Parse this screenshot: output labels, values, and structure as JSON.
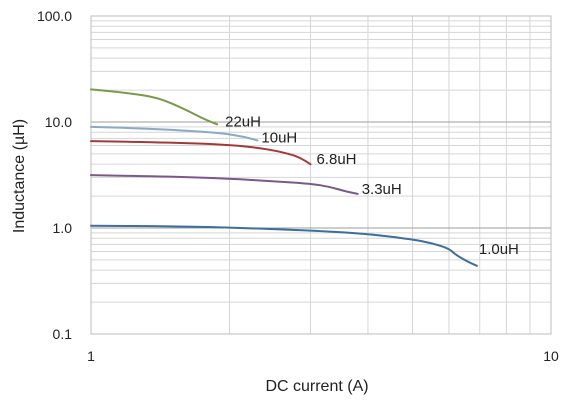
{
  "chart_data": {
    "type": "line",
    "title": "",
    "xlabel": "DC current (A)",
    "ylabel": "Inductance (µH)",
    "xscale": "log",
    "yscale": "log",
    "xlim": [
      1,
      10
    ],
    "ylim": [
      0.1,
      100
    ],
    "grid": true,
    "legend": "none",
    "x_tick_labels": [
      {
        "value": 1,
        "label": "1"
      },
      {
        "value": 10,
        "label": "10"
      }
    ],
    "y_tick_labels": [
      {
        "value": 0.1,
        "label": "0.1"
      },
      {
        "value": 1,
        "label": "1.0"
      },
      {
        "value": 10,
        "label": "10.0"
      },
      {
        "value": 100,
        "label": "100.0"
      }
    ],
    "series": [
      {
        "name": "22uH",
        "color": "#7a9a4a",
        "points": [
          [
            1.0,
            20.3
          ],
          [
            1.2,
            18.8
          ],
          [
            1.4,
            17.0
          ],
          [
            1.6,
            13.2
          ],
          [
            1.75,
            10.8
          ],
          [
            1.88,
            9.5
          ]
        ]
      },
      {
        "name": "10uH",
        "color": "#8aaac8",
        "points": [
          [
            1.0,
            9.0
          ],
          [
            1.3,
            8.7
          ],
          [
            1.6,
            8.3
          ],
          [
            1.9,
            7.9
          ],
          [
            2.1,
            7.4
          ],
          [
            2.22,
            7.0
          ],
          [
            2.3,
            6.7
          ]
        ]
      },
      {
        "name": "6.8uH",
        "color": "#a33a3a",
        "points": [
          [
            1.0,
            6.6
          ],
          [
            1.5,
            6.4
          ],
          [
            2.0,
            6.1
          ],
          [
            2.4,
            5.6
          ],
          [
            2.7,
            5.0
          ],
          [
            2.85,
            4.6
          ],
          [
            3.0,
            4.0
          ]
        ]
      },
      {
        "name": "3.3uH",
        "color": "#7a5a8a",
        "points": [
          [
            1.0,
            3.15
          ],
          [
            1.5,
            3.05
          ],
          [
            2.0,
            2.92
          ],
          [
            2.5,
            2.76
          ],
          [
            3.0,
            2.62
          ],
          [
            3.3,
            2.45
          ],
          [
            3.6,
            2.2
          ],
          [
            3.8,
            2.1
          ]
        ]
      },
      {
        "name": "1.0uH",
        "color": "#3e6e9e",
        "points": [
          [
            1.0,
            1.05
          ],
          [
            1.5,
            1.04
          ],
          [
            2.0,
            1.01
          ],
          [
            3.0,
            0.95
          ],
          [
            4.0,
            0.88
          ],
          [
            5.0,
            0.78
          ],
          [
            5.5,
            0.72
          ],
          [
            6.0,
            0.64
          ],
          [
            6.2,
            0.56
          ],
          [
            6.6,
            0.48
          ],
          [
            6.9,
            0.44
          ]
        ]
      }
    ]
  }
}
